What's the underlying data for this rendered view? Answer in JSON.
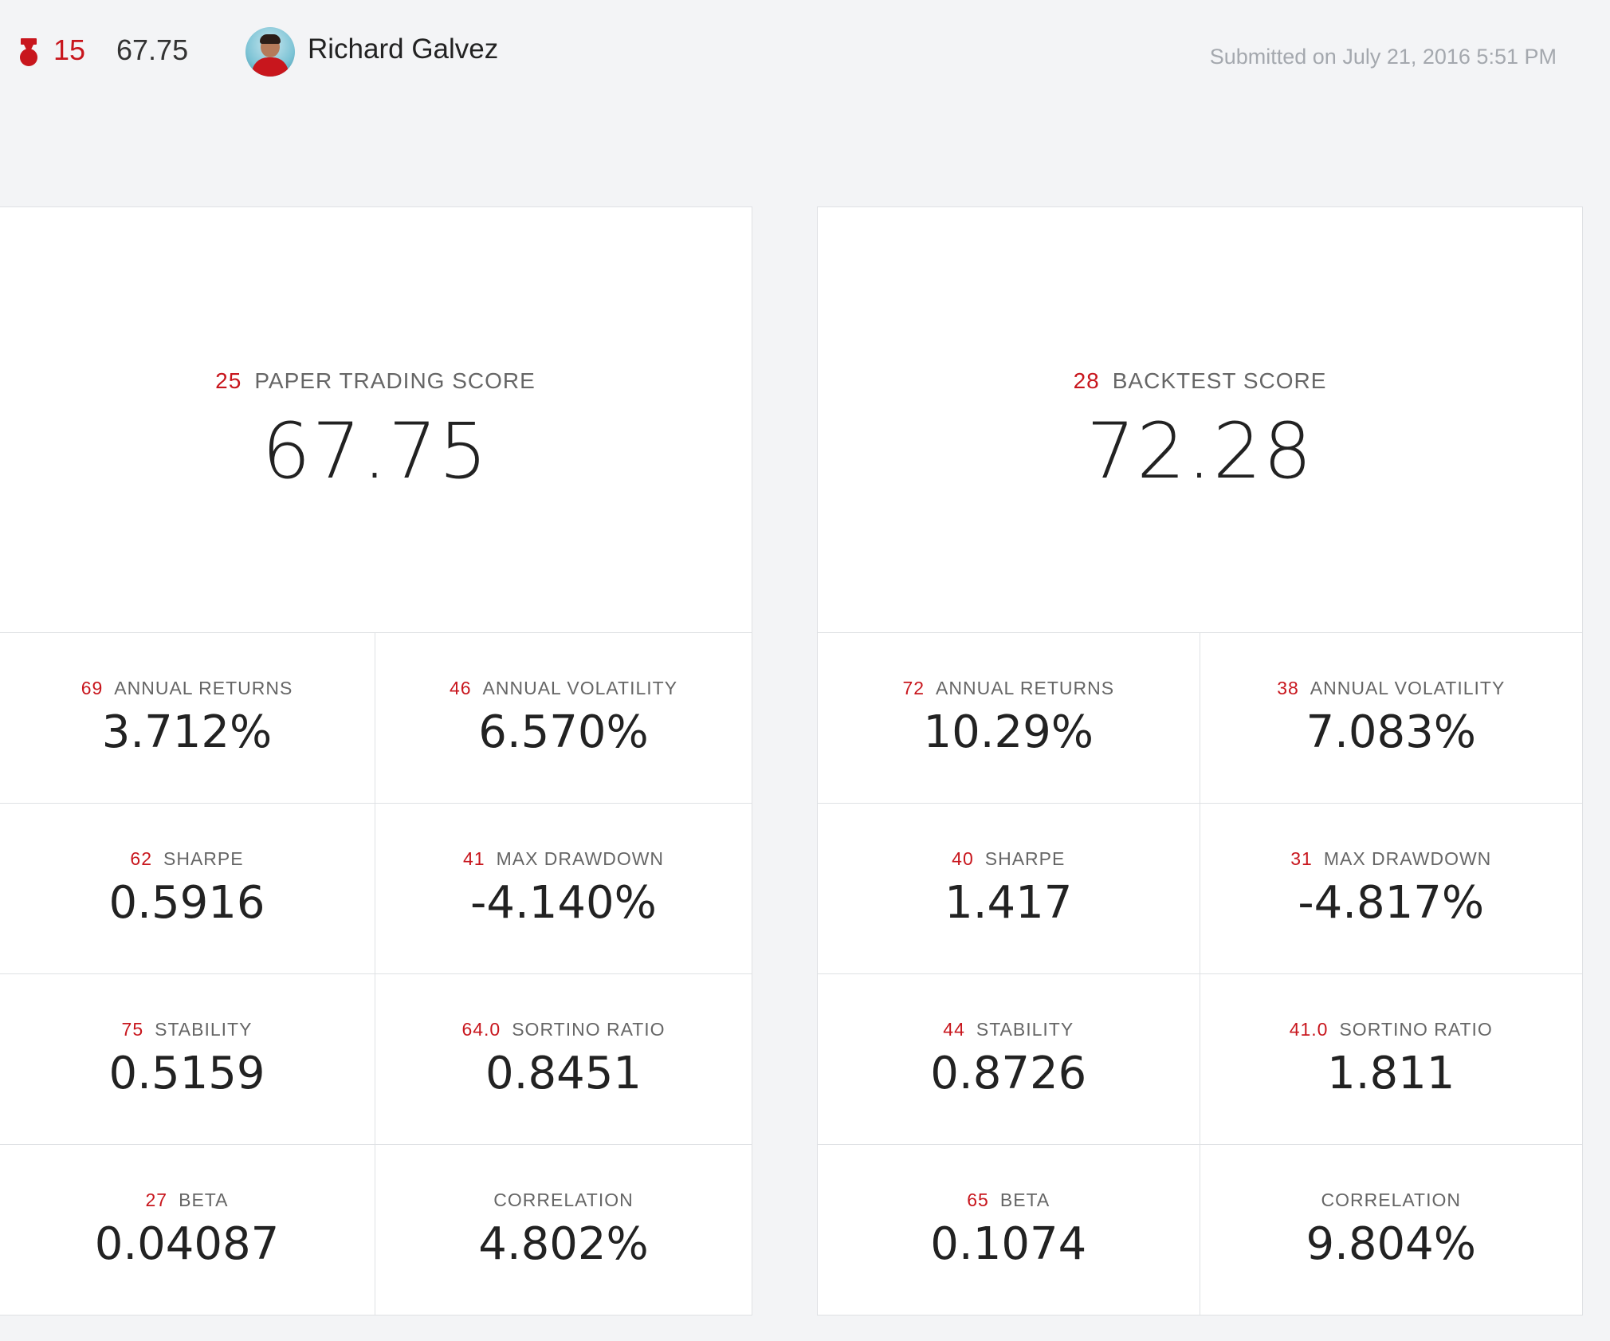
{
  "header": {
    "rank": "15",
    "score": "67.75",
    "user_name": "Richard Galvez",
    "submitted": "Submitted on July 21, 2016 5:51 PM"
  },
  "paper": {
    "rank": "25",
    "label": "PAPER TRADING SCORE",
    "value": "67.75",
    "metrics": [
      {
        "rank": "69",
        "label": "ANNUAL RETURNS",
        "value": "3.712%"
      },
      {
        "rank": "46",
        "label": "ANNUAL VOLATILITY",
        "value": "6.570%"
      },
      {
        "rank": "62",
        "label": "SHARPE",
        "value": "0.5916"
      },
      {
        "rank": "41",
        "label": "MAX DRAWDOWN",
        "value": "-4.140%"
      },
      {
        "rank": "75",
        "label": "STABILITY",
        "value": "0.5159"
      },
      {
        "rank": "64.0",
        "label": "SORTINO RATIO",
        "value": "0.8451"
      },
      {
        "rank": "27",
        "label": "BETA",
        "value": "0.04087"
      },
      {
        "rank": "",
        "label": "CORRELATION",
        "value": "4.802%"
      }
    ]
  },
  "backtest": {
    "rank": "28",
    "label": "BACKTEST SCORE",
    "value": "72.28",
    "metrics": [
      {
        "rank": "72",
        "label": "ANNUAL RETURNS",
        "value": "10.29%"
      },
      {
        "rank": "38",
        "label": "ANNUAL VOLATILITY",
        "value": "7.083%"
      },
      {
        "rank": "40",
        "label": "SHARPE",
        "value": "1.417"
      },
      {
        "rank": "31",
        "label": "MAX DRAWDOWN",
        "value": "-4.817%"
      },
      {
        "rank": "44",
        "label": "STABILITY",
        "value": "0.8726"
      },
      {
        "rank": "41.0",
        "label": "SORTINO RATIO",
        "value": "1.811"
      },
      {
        "rank": "65",
        "label": "BETA",
        "value": "0.1074"
      },
      {
        "rank": "",
        "label": "CORRELATION",
        "value": "9.804%"
      }
    ]
  },
  "colors": {
    "accent": "#c8161d",
    "background": "#f3f4f6",
    "panel": "#ffffff",
    "border": "#dfe1e4",
    "muted": "#a4a8ae"
  },
  "icons": {
    "rank": "rank-ribbon-icon",
    "avatar": "user-avatar"
  }
}
